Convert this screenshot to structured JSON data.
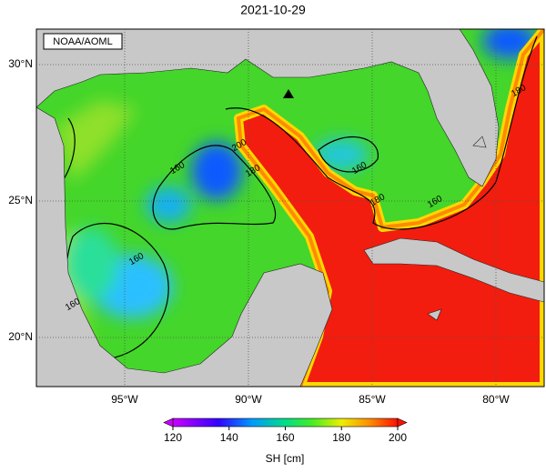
{
  "title": "2021-10-29",
  "source": "NOAA/AOML",
  "map": {
    "lat_ticks": [
      {
        "value": 30,
        "label": "30°N"
      },
      {
        "value": 25,
        "label": "25°N"
      },
      {
        "value": 20,
        "label": "20°N"
      }
    ],
    "lon_ticks": [
      {
        "value": -95,
        "label": "95°W"
      },
      {
        "value": -90,
        "label": "90°W"
      },
      {
        "value": -85,
        "label": "85°W"
      },
      {
        "value": -80,
        "label": "80°W"
      }
    ],
    "contour_labels": [
      160,
      180,
      200,
      160,
      160,
      160,
      180,
      180,
      160
    ]
  },
  "colorbar": {
    "label": "SH [cm]",
    "range": [
      120,
      200
    ],
    "ticks": [
      120,
      140,
      160,
      180,
      200
    ]
  }
}
